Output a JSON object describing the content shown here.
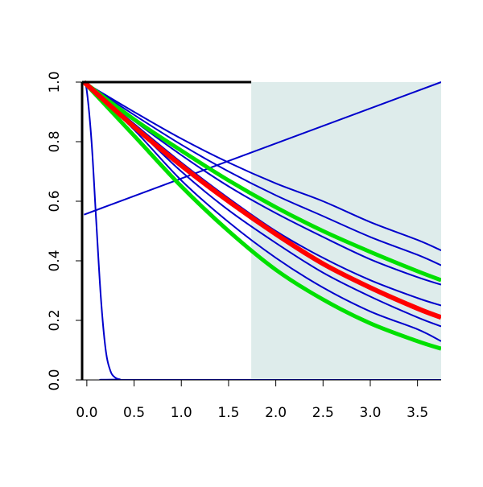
{
  "chart_data": {
    "type": "line",
    "title": "",
    "xlabel": "",
    "ylabel": "",
    "xlim": [
      -0.05,
      3.75
    ],
    "ylim": [
      0.0,
      1.0
    ],
    "xticks": [
      "0.0",
      "0.5",
      "1.0",
      "1.5",
      "2.0",
      "2.5",
      "3.0",
      "3.5"
    ],
    "xtick_values": [
      0.0,
      0.5,
      1.0,
      1.5,
      2.0,
      2.5,
      3.0,
      3.5
    ],
    "yticks": [
      "0.0",
      "0.2",
      "0.4",
      "0.6",
      "0.8",
      "1.0"
    ],
    "ytick_values": [
      0.0,
      0.2,
      0.4,
      0.6,
      0.8,
      1.0
    ],
    "shaded_region": {
      "x_from": 1.74,
      "x_to": 3.75,
      "color": "#deeceb"
    },
    "grid": false,
    "legend": "none",
    "series": [
      {
        "color": "#0000cc",
        "width": 2,
        "x": [
          -0.03,
          0.0,
          0.05,
          0.1,
          0.15,
          0.2,
          0.25,
          0.3,
          0.35,
          0.4,
          3.75
        ],
        "y": [
          1.0,
          0.97,
          0.8,
          0.53,
          0.27,
          0.1,
          0.03,
          0.008,
          0.002,
          0.0,
          0.0
        ]
      },
      {
        "color": "#0000cc",
        "width": 2,
        "x": [
          -0.03,
          3.75
        ],
        "y": [
          0.555,
          1.0
        ]
      },
      {
        "color": "#0000cc",
        "width": 2,
        "x": [
          -0.03,
          0.5,
          1.0,
          1.5,
          2.0,
          2.5,
          3.0,
          3.5,
          3.75
        ],
        "y": [
          1.0,
          0.9,
          0.81,
          0.73,
          0.66,
          0.6,
          0.53,
          0.47,
          0.435
        ]
      },
      {
        "color": "#0000cc",
        "width": 2,
        "x": [
          -0.03,
          0.5,
          1.0,
          1.5,
          2.0,
          2.5,
          3.0,
          3.5,
          3.75
        ],
        "y": [
          1.0,
          0.89,
          0.79,
          0.7,
          0.62,
          0.55,
          0.48,
          0.42,
          0.385
        ]
      },
      {
        "color": "#0000cc",
        "width": 2,
        "x": [
          -0.03,
          0.5,
          1.0,
          1.5,
          2.0,
          2.5,
          3.0,
          3.5,
          3.75
        ],
        "y": [
          1.0,
          0.87,
          0.755,
          0.65,
          0.56,
          0.48,
          0.405,
          0.345,
          0.32
        ]
      },
      {
        "color": "#0000cc",
        "width": 2,
        "x": [
          -0.03,
          0.5,
          1.0,
          1.5,
          2.0,
          2.5,
          3.0,
          3.5,
          3.75
        ],
        "y": [
          1.0,
          0.86,
          0.73,
          0.61,
          0.5,
          0.41,
          0.335,
          0.275,
          0.25
        ]
      },
      {
        "color": "#0000cc",
        "width": 2,
        "x": [
          -0.03,
          0.5,
          1.0,
          1.5,
          2.0,
          2.5,
          3.0,
          3.5,
          3.75
        ],
        "y": [
          1.0,
          0.85,
          0.7,
          0.57,
          0.46,
          0.36,
          0.28,
          0.21,
          0.18
        ]
      },
      {
        "color": "#0000cc",
        "width": 2,
        "x": [
          -0.03,
          0.5,
          1.0,
          1.5,
          2.0,
          2.5,
          3.0,
          3.5,
          3.75
        ],
        "y": [
          1.0,
          0.84,
          0.67,
          0.53,
          0.41,
          0.31,
          0.23,
          0.17,
          0.13
        ]
      },
      {
        "color": "#00e000",
        "width": 5,
        "x": [
          -0.03,
          0.5,
          1.0,
          1.5,
          2.0,
          2.5,
          3.0,
          3.5,
          3.75
        ],
        "y": [
          1.0,
          0.875,
          0.77,
          0.67,
          0.58,
          0.5,
          0.43,
          0.365,
          0.335
        ]
      },
      {
        "color": "#00e000",
        "width": 5,
        "x": [
          -0.03,
          0.5,
          1.0,
          1.5,
          2.0,
          2.5,
          3.0,
          3.5,
          3.75
        ],
        "y": [
          1.0,
          0.82,
          0.65,
          0.5,
          0.37,
          0.27,
          0.19,
          0.13,
          0.105
        ]
      },
      {
        "color": "#ff0000",
        "width": 6,
        "x": [
          -0.03,
          0.5,
          1.0,
          1.5,
          2.0,
          2.5,
          3.0,
          3.5,
          3.75
        ],
        "y": [
          1.0,
          0.85,
          0.72,
          0.6,
          0.49,
          0.39,
          0.31,
          0.24,
          0.21
        ]
      }
    ]
  }
}
